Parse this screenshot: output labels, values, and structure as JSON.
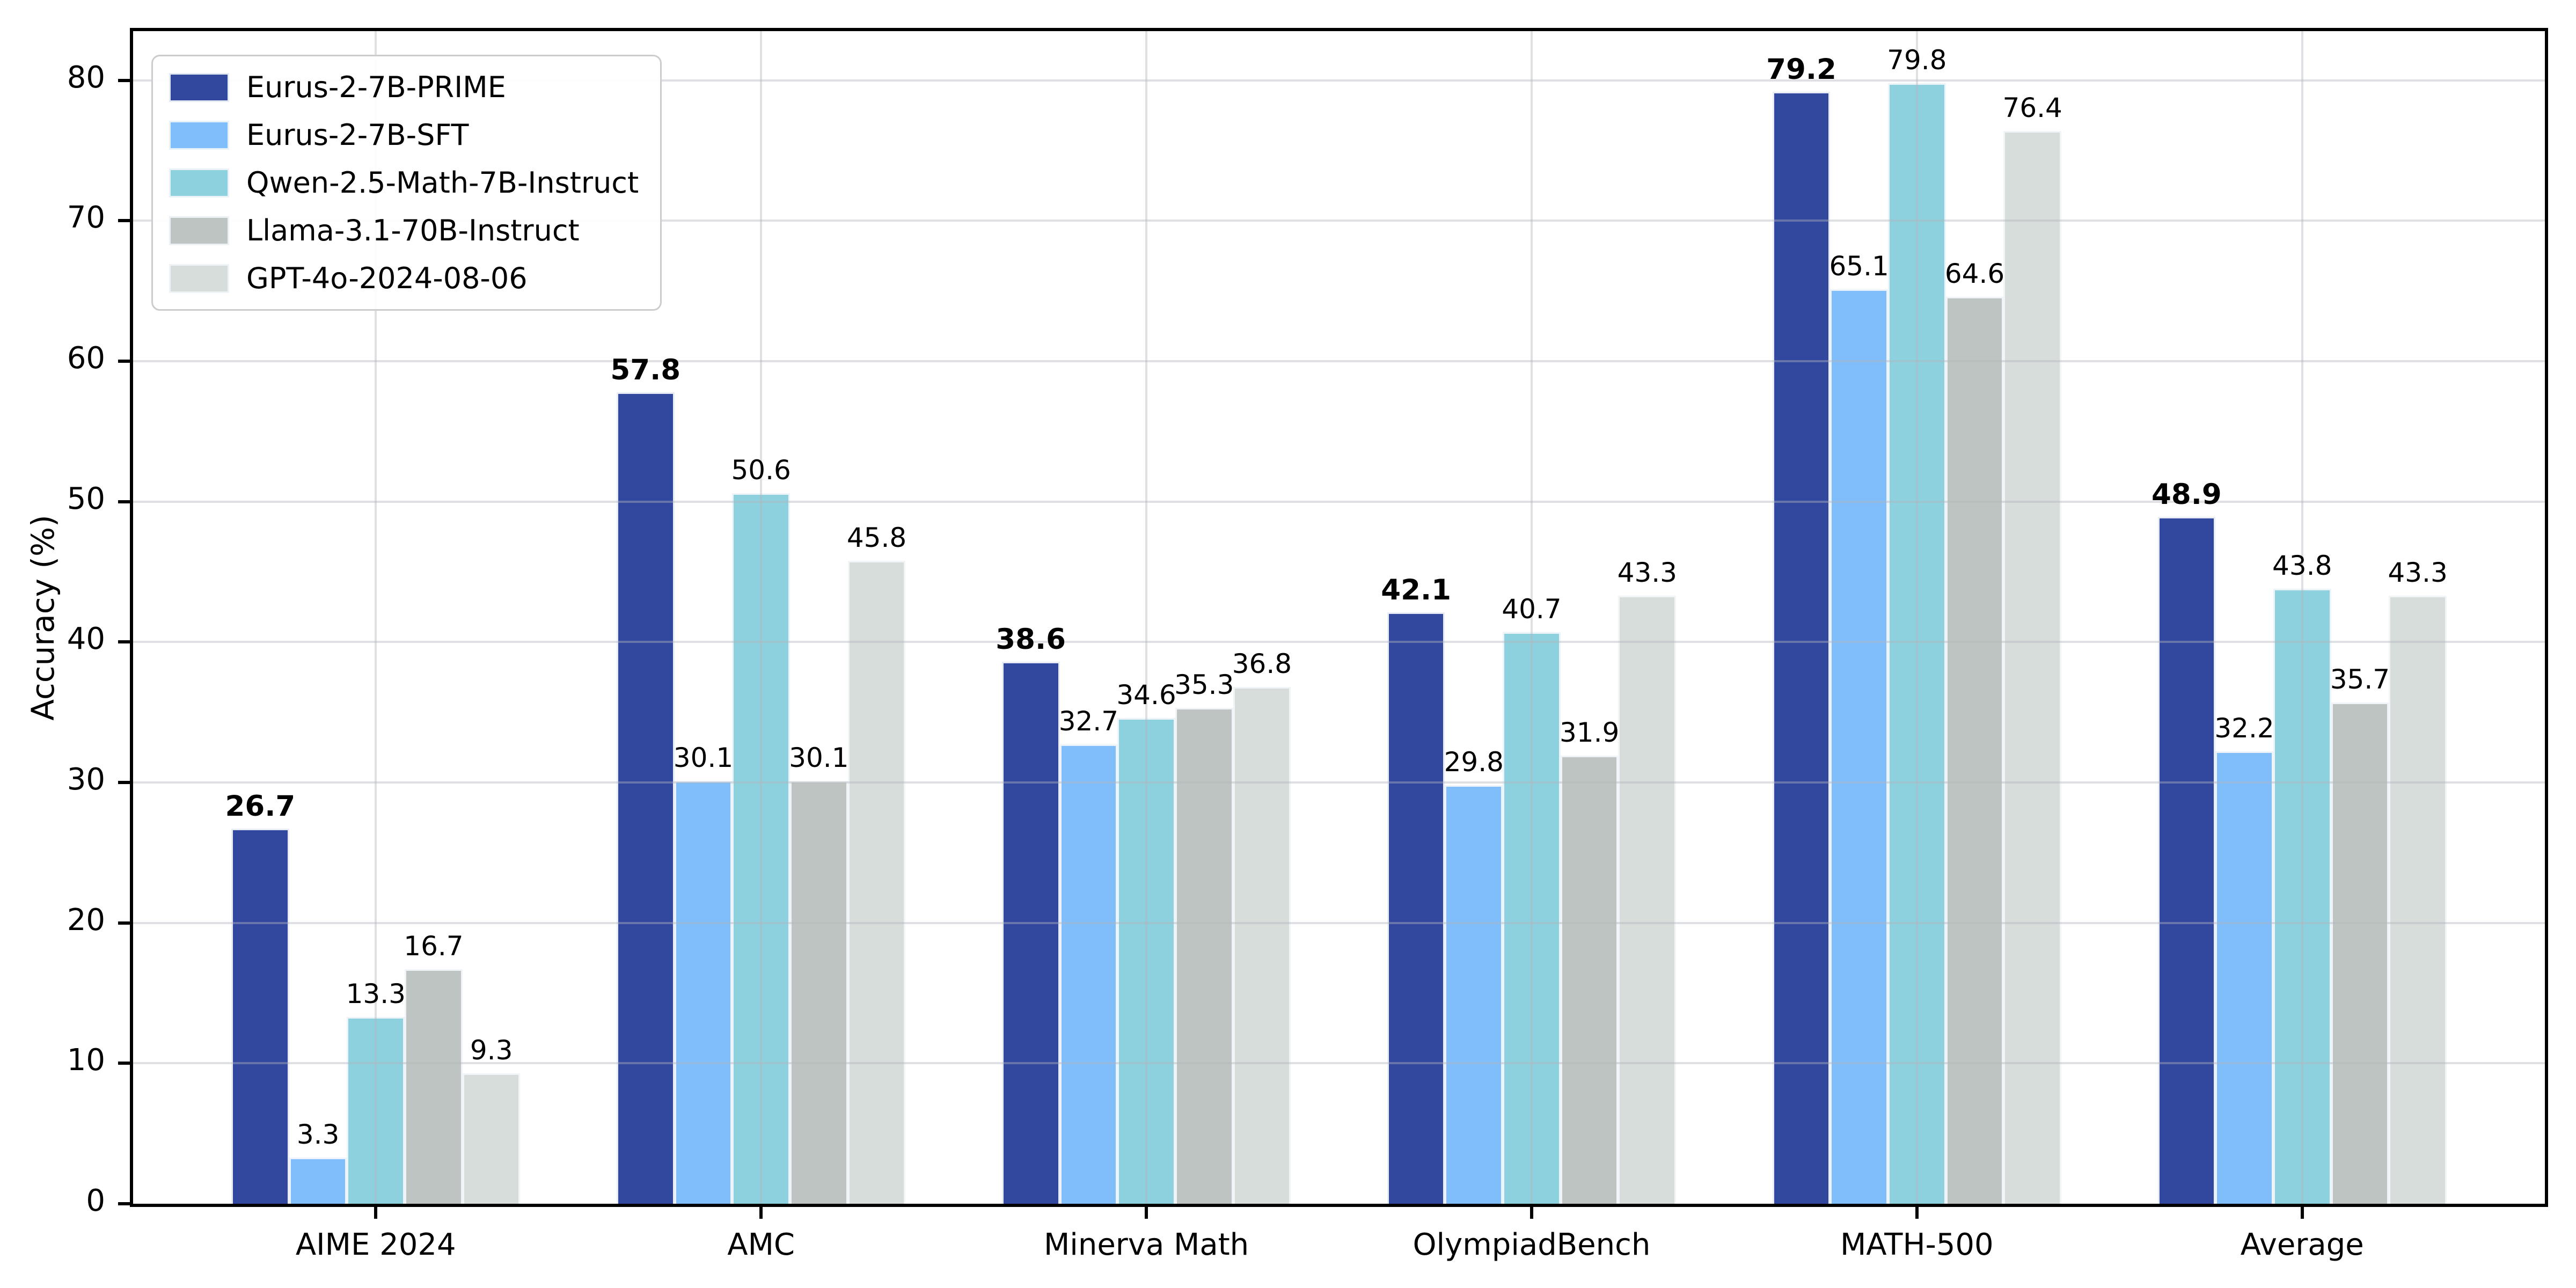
{
  "chart_data": {
    "type": "bar",
    "title": "",
    "ylabel": "Accuracy (%)",
    "xlabel": "",
    "categories": [
      "AIME 2024",
      "AMC",
      "Minerva Math",
      "OlympiadBench",
      "MATH-500",
      "Average"
    ],
    "series": [
      {
        "name": "Eurus-2-7B-PRIME",
        "color": "#32479e",
        "emphasized_labels": true,
        "values": [
          26.7,
          57.8,
          38.6,
          42.1,
          79.2,
          48.9
        ]
      },
      {
        "name": "Eurus-2-7B-SFT",
        "color": "#7fbdfb",
        "emphasized_labels": false,
        "values": [
          3.3,
          30.1,
          32.7,
          29.8,
          65.1,
          32.2
        ]
      },
      {
        "name": "Qwen-2.5-Math-7B-Instruct",
        "color": "#8dd1de",
        "emphasized_labels": false,
        "values": [
          13.3,
          50.6,
          34.6,
          40.7,
          79.8,
          43.8
        ]
      },
      {
        "name": "Llama-3.1-70B-Instruct",
        "color": "#bdc4c2",
        "emphasized_labels": false,
        "values": [
          16.7,
          30.1,
          35.3,
          31.9,
          64.6,
          35.7
        ]
      },
      {
        "name": "GPT-4o-2024-08-06",
        "color": "#d7dddb",
        "emphasized_labels": false,
        "values": [
          9.3,
          45.8,
          36.8,
          43.3,
          76.4,
          43.3
        ]
      }
    ],
    "yticks": [
      0,
      10,
      20,
      30,
      40,
      50,
      60,
      70,
      80
    ],
    "ylim": [
      0,
      83.5
    ],
    "grid": true,
    "value_label_decimals": 1,
    "legend_position": "upper left"
  },
  "style_colors": {
    "spine": "#000000",
    "background": "#ffffff"
  }
}
